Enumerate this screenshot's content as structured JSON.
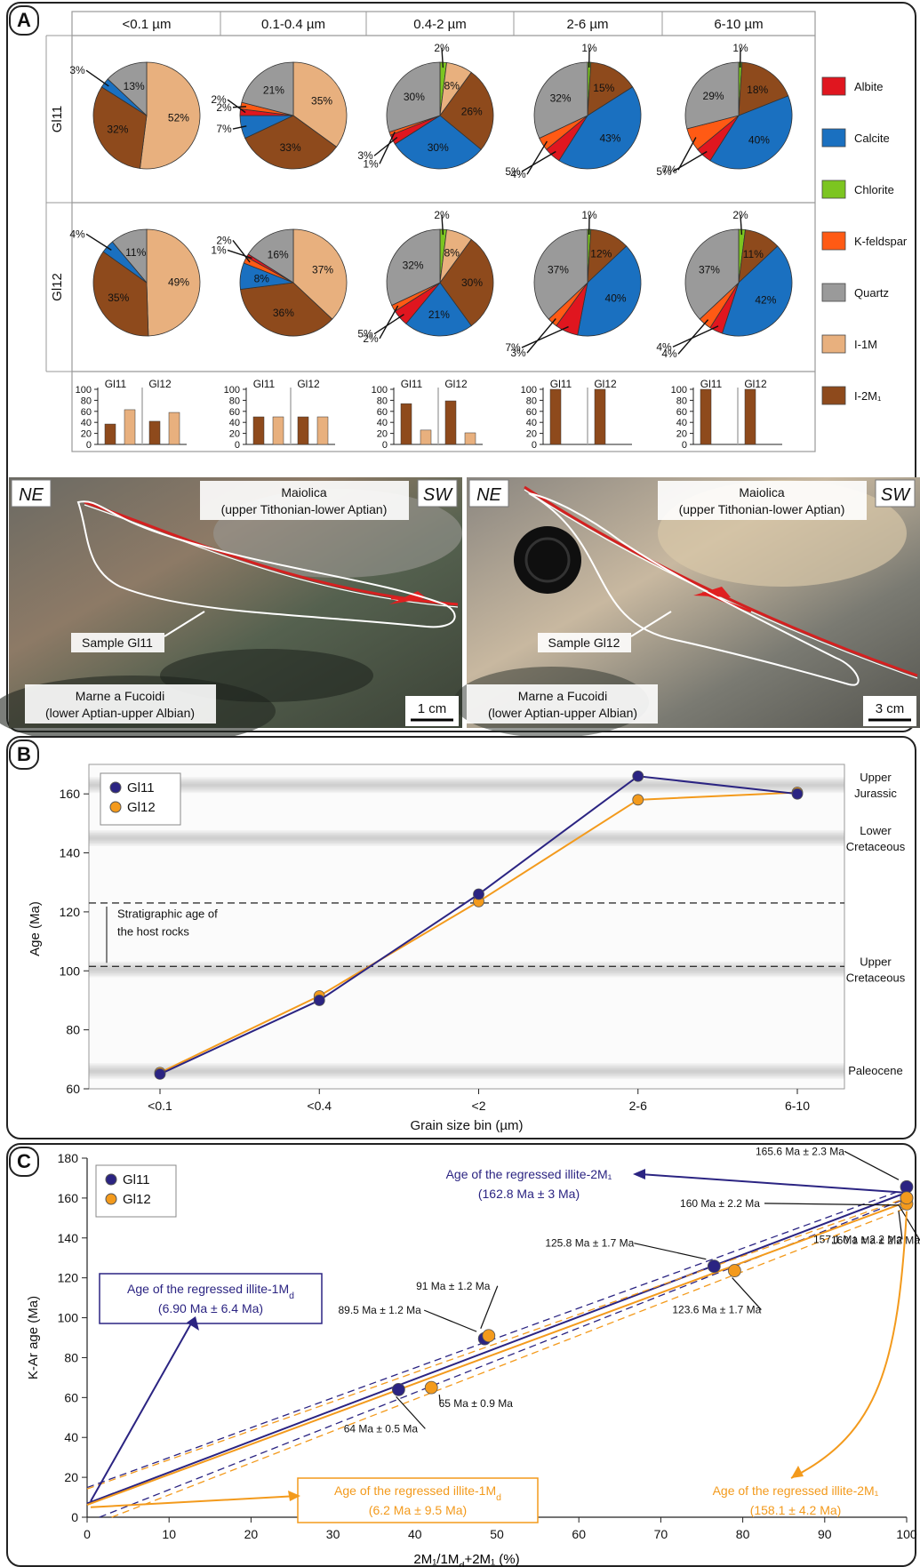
{
  "panel_labels": {
    "a": "A",
    "b": "B",
    "c": "C"
  },
  "colors": {
    "Albite": "#e0161f",
    "Calcite": "#1a70c0",
    "Chlorite": "#7cc520",
    "K-feldspar": "#ff5a14",
    "Quartz": "#9a9a9a",
    "I-1M": "#e8b07e",
    "I-2M1": "#8e4a1c",
    "gl11": "#2b2482",
    "gl12": "#f39a1c"
  },
  "panel_a": {
    "grain_headers": [
      "<0.1 µm",
      "0.1-0.4 µm",
      "0.4-2 µm",
      "2-6 µm",
      "6-10 µm"
    ],
    "row_labels": [
      "Gl11",
      "Gl12"
    ],
    "legend": [
      {
        "name": "Albite",
        "label": "Albite"
      },
      {
        "name": "Calcite",
        "label": "Calcite"
      },
      {
        "name": "Chlorite",
        "label": "Chlorite"
      },
      {
        "name": "K-feldspar",
        "label": "K-feldspar"
      },
      {
        "name": "Quartz",
        "label": "Quartz"
      },
      {
        "name": "I-1M",
        "label": "I-1M"
      },
      {
        "name": "I-2M1",
        "label": "I-2M₁"
      }
    ],
    "bar_sample_labels": [
      "Gl11",
      "Gl12"
    ],
    "bar_ticks": [
      0,
      20,
      40,
      60,
      80,
      100
    ]
  },
  "chart_data": [
    {
      "type": "pie",
      "sample": "Gl11",
      "bin": "<0.1 µm",
      "slices": [
        {
          "mineral": "I-1M",
          "value": 52,
          "label": "52%"
        },
        {
          "mineral": "I-2M1",
          "value": 32,
          "label": "32%"
        },
        {
          "mineral": "Calcite",
          "value": 3,
          "label": "3%"
        },
        {
          "mineral": "Quartz",
          "value": 13,
          "label": "13%"
        }
      ]
    },
    {
      "type": "pie",
      "sample": "Gl11",
      "bin": "0.1-0.4 µm",
      "slices": [
        {
          "mineral": "I-1M",
          "value": 35,
          "label": "35%"
        },
        {
          "mineral": "I-2M1",
          "value": 33,
          "label": "33%"
        },
        {
          "mineral": "Calcite",
          "value": 7,
          "label": "7%"
        },
        {
          "mineral": "Albite",
          "value": 2,
          "label": "2%"
        },
        {
          "mineral": "K-feldspar",
          "value": 2,
          "label": "2%"
        },
        {
          "mineral": "Quartz",
          "value": 21,
          "label": "21%"
        }
      ]
    },
    {
      "type": "pie",
      "sample": "Gl11",
      "bin": "0.4-2 µm",
      "slices": [
        {
          "mineral": "Chlorite",
          "value": 2,
          "label": "2%"
        },
        {
          "mineral": "I-1M",
          "value": 8,
          "label": "8%"
        },
        {
          "mineral": "I-2M1",
          "value": 26,
          "label": "26%"
        },
        {
          "mineral": "Calcite",
          "value": 30,
          "label": "30%"
        },
        {
          "mineral": "Albite",
          "value": 3,
          "label": "3%"
        },
        {
          "mineral": "K-feldspar",
          "value": 1,
          "label": "1%"
        },
        {
          "mineral": "Quartz",
          "value": 30,
          "label": "30%"
        }
      ]
    },
    {
      "type": "pie",
      "sample": "Gl11",
      "bin": "2-6 µm",
      "slices": [
        {
          "mineral": "Chlorite",
          "value": 1,
          "label": "1%"
        },
        {
          "mineral": "I-2M1",
          "value": 15,
          "label": "15%"
        },
        {
          "mineral": "Calcite",
          "value": 43,
          "label": "43%"
        },
        {
          "mineral": "Albite",
          "value": 5,
          "label": "5%"
        },
        {
          "mineral": "K-feldspar",
          "value": 4,
          "label": "4%"
        },
        {
          "mineral": "Quartz",
          "value": 32,
          "label": "32%"
        }
      ]
    },
    {
      "type": "pie",
      "sample": "Gl11",
      "bin": "6-10 µm",
      "slices": [
        {
          "mineral": "Chlorite",
          "value": 1,
          "label": "1%"
        },
        {
          "mineral": "I-2M1",
          "value": 18,
          "label": "18%"
        },
        {
          "mineral": "Calcite",
          "value": 40,
          "label": "40%"
        },
        {
          "mineral": "Albite",
          "value": 5,
          "label": "5%"
        },
        {
          "mineral": "K-feldspar",
          "value": 7,
          "label": "7%"
        },
        {
          "mineral": "Quartz",
          "value": 29,
          "label": "29%"
        }
      ]
    },
    {
      "type": "pie",
      "sample": "Gl12",
      "bin": "<0.1 µm",
      "slices": [
        {
          "mineral": "I-1M",
          "value": 49,
          "label": "49%"
        },
        {
          "mineral": "I-2M1",
          "value": 35,
          "label": "35%"
        },
        {
          "mineral": "Calcite",
          "value": 4,
          "label": "4%"
        },
        {
          "mineral": "Quartz",
          "value": 11,
          "label": "11%"
        }
      ]
    },
    {
      "type": "pie",
      "sample": "Gl12",
      "bin": "0.1-0.4 µm",
      "slices": [
        {
          "mineral": "I-1M",
          "value": 37,
          "label": "37%"
        },
        {
          "mineral": "I-2M1",
          "value": 36,
          "label": "36%"
        },
        {
          "mineral": "Calcite",
          "value": 8,
          "label": "8%"
        },
        {
          "mineral": "K-feldspar",
          "value": 2,
          "label": "2%"
        },
        {
          "mineral": "Albite",
          "value": 1,
          "label": "1%"
        },
        {
          "mineral": "Quartz",
          "value": 16,
          "label": "16%"
        }
      ]
    },
    {
      "type": "pie",
      "sample": "Gl12",
      "bin": "0.4-2 µm",
      "slices": [
        {
          "mineral": "Chlorite",
          "value": 2,
          "label": "2%"
        },
        {
          "mineral": "I-1M",
          "value": 8,
          "label": "8%"
        },
        {
          "mineral": "I-2M1",
          "value": 30,
          "label": "30%"
        },
        {
          "mineral": "Calcite",
          "value": 21,
          "label": "21%"
        },
        {
          "mineral": "Albite",
          "value": 5,
          "label": "5%"
        },
        {
          "mineral": "K-feldspar",
          "value": 2,
          "label": "2%"
        },
        {
          "mineral": "Quartz",
          "value": 32,
          "label": "32%"
        }
      ]
    },
    {
      "type": "pie",
      "sample": "Gl12",
      "bin": "2-6 µm",
      "slices": [
        {
          "mineral": "Chlorite",
          "value": 1,
          "label": "1%"
        },
        {
          "mineral": "I-2M1",
          "value": 12,
          "label": "12%"
        },
        {
          "mineral": "Calcite",
          "value": 40,
          "label": "40%"
        },
        {
          "mineral": "Albite",
          "value": 7,
          "label": "7%"
        },
        {
          "mineral": "K-feldspar",
          "value": 3,
          "label": "3%"
        },
        {
          "mineral": "Quartz",
          "value": 37,
          "label": "37%"
        }
      ]
    },
    {
      "type": "pie",
      "sample": "Gl12",
      "bin": "6-10 µm",
      "slices": [
        {
          "mineral": "Chlorite",
          "value": 2,
          "label": "2%"
        },
        {
          "mineral": "I-2M1",
          "value": 11,
          "label": "11%"
        },
        {
          "mineral": "Calcite",
          "value": 42,
          "label": "42%"
        },
        {
          "mineral": "Albite",
          "value": 4,
          "label": "4%"
        },
        {
          "mineral": "K-feldspar",
          "value": 4,
          "label": "4%"
        },
        {
          "mineral": "Quartz",
          "value": 37,
          "label": "37%"
        }
      ]
    },
    {
      "type": "bar",
      "bin": "<0.1 µm",
      "ylim": [
        0,
        100
      ],
      "categories": [
        "Gl11",
        "Gl12"
      ],
      "series": [
        {
          "name": "I-2M1",
          "values": [
            37,
            42
          ]
        },
        {
          "name": "I-1M",
          "values": [
            63,
            58
          ]
        }
      ]
    },
    {
      "type": "bar",
      "bin": "0.1-0.4 µm",
      "ylim": [
        0,
        100
      ],
      "categories": [
        "Gl11",
        "Gl12"
      ],
      "series": [
        {
          "name": "I-2M1",
          "values": [
            50,
            50
          ]
        },
        {
          "name": "I-1M",
          "values": [
            50,
            50
          ]
        }
      ]
    },
    {
      "type": "bar",
      "bin": "0.4-2 µm",
      "ylim": [
        0,
        100
      ],
      "categories": [
        "Gl11",
        "Gl12"
      ],
      "series": [
        {
          "name": "I-2M1",
          "values": [
            74,
            79
          ]
        },
        {
          "name": "I-1M",
          "values": [
            26,
            21
          ]
        }
      ]
    },
    {
      "type": "bar",
      "bin": "2-6 µm",
      "ylim": [
        0,
        100
      ],
      "categories": [
        "Gl11",
        "Gl12"
      ],
      "series": [
        {
          "name": "I-2M1",
          "values": [
            100,
            100
          ]
        },
        {
          "name": "I-1M",
          "values": [
            0,
            0
          ]
        }
      ]
    },
    {
      "type": "bar",
      "bin": "6-10 µm",
      "ylim": [
        0,
        100
      ],
      "categories": [
        "Gl11",
        "Gl12"
      ],
      "series": [
        {
          "name": "I-2M1",
          "values": [
            100,
            100
          ]
        },
        {
          "name": "I-1M",
          "values": [
            0,
            0
          ]
        }
      ]
    },
    {
      "type": "line",
      "id": "panel_b",
      "categories": [
        "<0.1",
        "<0.4",
        "<2",
        "2-6",
        "6-10"
      ],
      "xlabel": "Grain size bin (µm)",
      "ylabel": "Age (Ma)",
      "ylim": [
        60,
        170
      ],
      "yticks": [
        60,
        80,
        100,
        120,
        140,
        160
      ],
      "series": [
        {
          "name": "Gl11",
          "values": [
            65,
            90,
            126,
            166,
            160
          ]
        },
        {
          "name": "Gl12",
          "values": [
            65.5,
            91.5,
            123.5,
            158,
            160.5
          ]
        }
      ],
      "bands": [
        {
          "age": 66,
          "label": "Paleocene"
        },
        {
          "age": 100.5,
          "label": "Upper\nCretaceous"
        },
        {
          "age": 145,
          "label": "Lower\nCretaceous"
        },
        {
          "age": 163,
          "label": "Upper\nJurassic"
        }
      ],
      "strat_range": [
        101.5,
        123
      ],
      "strat_label": "Stratigraphic age of\nthe host rocks",
      "legend": "top-left"
    },
    {
      "type": "scatter",
      "id": "panel_c",
      "xlabel": "2M₁/1M_d+2M₁ (%)",
      "ylabel": "K-Ar age (Ma)",
      "xlim": [
        0,
        100
      ],
      "ylim": [
        0,
        180
      ],
      "xticks": [
        0,
        10,
        20,
        30,
        40,
        50,
        60,
        70,
        80,
        90,
        100
      ],
      "yticks": [
        0,
        20,
        40,
        60,
        80,
        100,
        120,
        140,
        160,
        180
      ],
      "series": [
        {
          "name": "Gl11",
          "points": [
            {
              "x": 38,
              "y": 64,
              "label": "64 Ma ± 0.5 Ma"
            },
            {
              "x": 48.5,
              "y": 89.5,
              "label": "89.5 Ma ± 1.2 Ma"
            },
            {
              "x": 76.5,
              "y": 125.8,
              "label": "125.8 Ma ± 1.7 Ma"
            },
            {
              "x": 100,
              "y": 160,
              "label": "160 Ma ± 2.2 Ma"
            },
            {
              "x": 100,
              "y": 165.6,
              "label": "165.6 Ma ± 2.3 Ma"
            }
          ]
        },
        {
          "name": "Gl12",
          "points": [
            {
              "x": 42,
              "y": 65,
              "label": "65 Ma ± 0.9 Ma"
            },
            {
              "x": 49,
              "y": 91,
              "label": "91 Ma ± 1.2 Ma"
            },
            {
              "x": 79,
              "y": 123.6,
              "label": "123.6 Ma ± 1.7 Ma"
            },
            {
              "x": 100,
              "y": 157.1,
              "label": "157.1 Ma ± 2.2 Ma"
            },
            {
              "x": 100,
              "y": 160.1,
              "label": "160.1 Ma ± 2.2 Ma"
            }
          ]
        }
      ],
      "regressions": [
        {
          "series": "Gl11",
          "y0": 6.9,
          "y100": 162.8
        },
        {
          "series": "Gl12",
          "y0": 6.2,
          "y100": 158.1
        }
      ],
      "annotations": [
        {
          "series": "Gl11",
          "line1": "Age of the regressed illite-1M_d",
          "line2": "(6.90 Ma ± 6.4 Ma)"
        },
        {
          "series": "Gl11",
          "line1": "Age of the regressed illite-2M₁",
          "line2": "(162.8 Ma ± 3 Ma)"
        },
        {
          "series": "Gl12",
          "line1": "Age of the regressed illite-1M_d",
          "line2": "(6.2 Ma ± 9.5 Ma)"
        },
        {
          "series": "Gl12",
          "line1": "Age of the regressed illite-2M₁",
          "line2": "(158.1 ± 4.2 Ma)"
        }
      ],
      "legend": "top-left"
    }
  ],
  "photos": [
    {
      "ne": "NE",
      "sw": "SW",
      "upper": "Maiolica",
      "upper_sub": "(upper Tithonian-lower Aptian)",
      "sample": "Sample Gl11",
      "lower": "Marne a Fucoidi",
      "lower_sub": "(lower Aptian-upper Albian)",
      "scale": "1 cm"
    },
    {
      "ne": "NE",
      "sw": "SW",
      "upper": "Maiolica",
      "upper_sub": "(upper Tithonian-lower Aptian)",
      "sample": "Sample Gl12",
      "lower": "Marne a Fucoidi",
      "lower_sub": "(lower Aptian-upper Albian)",
      "scale": "3 cm"
    }
  ]
}
